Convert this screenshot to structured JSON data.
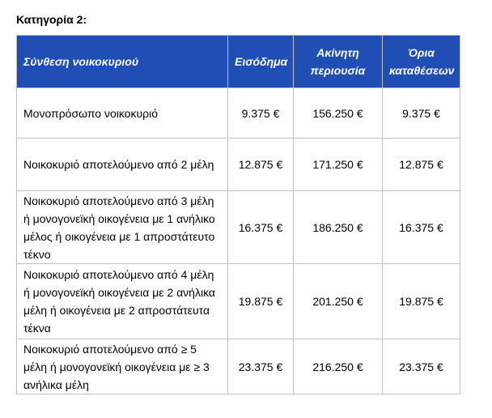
{
  "title": "Κατηγορία 2:",
  "table": {
    "header": [
      "Σύνθεση νοικοκυριού",
      "Εισόδημα",
      "Ακίνητη περιουσία",
      "Όρια καταθέσεων"
    ],
    "rows": [
      [
        "Μονοπρόσωπο νοικοκυριό",
        "9.375 €",
        "156.250 €",
        "9.375 €"
      ],
      [
        "Νοικοκυριό αποτελούμενο από 2 μέλη",
        "12.875 €",
        "171.250 €",
        "12.875 €"
      ],
      [
        "Νοικοκυριό αποτελούμενο από 3 μέλη ή μονογονεϊκή οικογένεια με 1 ανήλικο μέλος ή οικογένεια με 1 απροστάτευτο τέκνο",
        "16.375 €",
        "186.250 €",
        "16.375 €"
      ],
      [
        "Νοικοκυριό αποτελούμενο από 4 μέλη ή μονογονεϊκή οικογένεια με 2 ανήλικα μέλη ή οικογένεια με 2 απροστάτευτα τέκνα",
        "19.875 €",
        "201.250 €",
        "19.875 €"
      ],
      [
        "Νοικοκυριό αποτελούμενο από ≥ 5 μέλη ή μονογονεϊκή οικογένεια με ≥ 3 ανήλικα μέλη",
        "23.375 €",
        "216.250 €",
        "23.375 €"
      ]
    ]
  }
}
